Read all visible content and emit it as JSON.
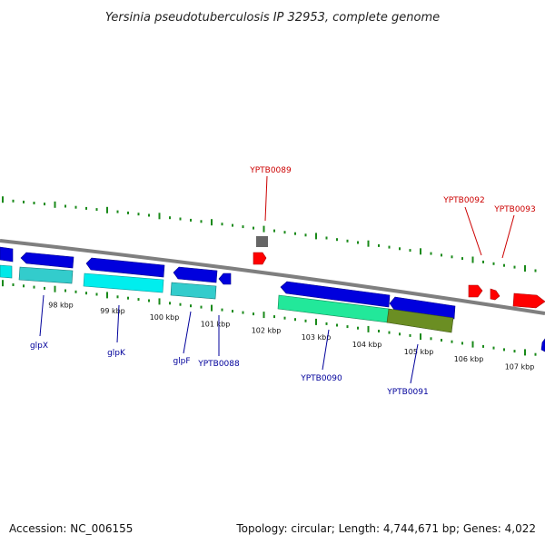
{
  "title": "Yersinia pseudotuberculosis IP 32953, complete genome",
  "footer": {
    "accession": "Accession: NC_006155",
    "summary": "Topology: circular; Length: 4,744,671 bp; Genes: 4,022"
  },
  "colors": {
    "backbone": "#7f7f7f",
    "tick": "#1a8a1a",
    "forward_gene": "#ff0000",
    "reverse_gene": "#0000dd",
    "label_forward": "#cc0000",
    "label_reverse": "#00009b",
    "cds_cyan": "#00e8e8",
    "cds_teal": "#33cccc",
    "cds_green": "#22e89a",
    "cds_olive": "#6b8e23",
    "pseudogene_gray": "#666666"
  },
  "ruler": {
    "labels": [
      "98 kbp",
      "99 kbp",
      "100 kbp",
      "101 kbp",
      "102 kbp",
      "103 kbp",
      "104 kbp",
      "105 kbp",
      "106 kbp",
      "107 kbp"
    ]
  },
  "genes": {
    "forward_labels": [
      "YPTB0089",
      "YPTB0092",
      "YPTB0093"
    ],
    "reverse_labels": [
      "glpX",
      "glpK",
      "glpF",
      "YPTB0088",
      "YPTB0090",
      "YPTB0091"
    ]
  }
}
